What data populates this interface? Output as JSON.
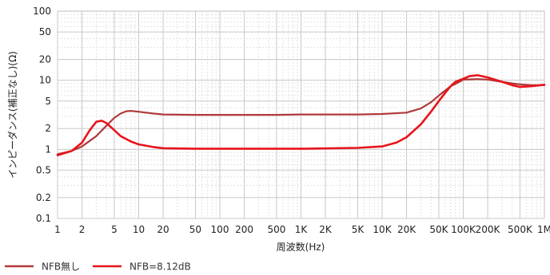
{
  "chart_data": {
    "type": "line",
    "xlabel": "周波数(Hz)",
    "ylabel": "インピーダンス(補正なし)(Ω)",
    "x_scale": "log",
    "y_scale": "log",
    "xlim": [
      1,
      1000000
    ],
    "ylim": [
      0.1,
      100
    ],
    "grid": true,
    "legend_position": "bottom-left",
    "x_ticks": [
      {
        "value": 1,
        "label": "1"
      },
      {
        "value": 2,
        "label": "2"
      },
      {
        "value": 5,
        "label": "5"
      },
      {
        "value": 10,
        "label": "10"
      },
      {
        "value": 20,
        "label": "20"
      },
      {
        "value": 50,
        "label": "50"
      },
      {
        "value": 100,
        "label": "100"
      },
      {
        "value": 200,
        "label": "200"
      },
      {
        "value": 500,
        "label": "500"
      },
      {
        "value": 1000,
        "label": "1K"
      },
      {
        "value": 2000,
        "label": "2K"
      },
      {
        "value": 5000,
        "label": "5K"
      },
      {
        "value": 10000,
        "label": "10K"
      },
      {
        "value": 20000,
        "label": "20K"
      },
      {
        "value": 50000,
        "label": "50K"
      },
      {
        "value": 100000,
        "label": "100K"
      },
      {
        "value": 200000,
        "label": "200K"
      },
      {
        "value": 500000,
        "label": "500K"
      },
      {
        "value": 1000000,
        "label": "1M"
      }
    ],
    "y_ticks": [
      {
        "value": 0.1,
        "label": "0.1"
      },
      {
        "value": 0.2,
        "label": "0.2"
      },
      {
        "value": 0.5,
        "label": "0.5"
      },
      {
        "value": 1,
        "label": "1"
      },
      {
        "value": 2,
        "label": "2"
      },
      {
        "value": 5,
        "label": "5"
      },
      {
        "value": 10,
        "label": "10"
      },
      {
        "value": 20,
        "label": "20"
      },
      {
        "value": 50,
        "label": "50"
      },
      {
        "value": 100,
        "label": "100"
      }
    ],
    "series": [
      {
        "name": "NFB無し",
        "color": "#b03a3a",
        "x": [
          1,
          1.5,
          2,
          3,
          4,
          5,
          6,
          7,
          8,
          10,
          15,
          20,
          50,
          100,
          500,
          1000,
          5000,
          10000,
          20000,
          30000,
          40000,
          50000,
          70000,
          90000,
          100000,
          120000,
          150000,
          200000,
          300000,
          400000,
          500000,
          700000,
          1000000
        ],
        "y": [
          0.85,
          0.95,
          1.1,
          1.55,
          2.2,
          2.85,
          3.3,
          3.55,
          3.6,
          3.5,
          3.3,
          3.2,
          3.15,
          3.15,
          3.15,
          3.2,
          3.2,
          3.25,
          3.4,
          3.9,
          4.8,
          6,
          8.2,
          9.5,
          10.2,
          10.3,
          10.4,
          10.2,
          9.5,
          9.0,
          8.7,
          8.5,
          8.5
        ]
      },
      {
        "name": "NFB=8.12dB",
        "color": "#e8141b",
        "x": [
          1,
          1.5,
          2,
          2.5,
          3,
          3.5,
          4,
          5,
          6,
          8,
          10,
          15,
          20,
          50,
          100,
          500,
          1000,
          5000,
          10000,
          15000,
          20000,
          30000,
          40000,
          50000,
          60000,
          70000,
          80000,
          100000,
          120000,
          150000,
          200000,
          300000,
          400000,
          500000,
          700000,
          1000000
        ],
        "y": [
          0.82,
          0.95,
          1.25,
          1.9,
          2.5,
          2.6,
          2.4,
          1.9,
          1.55,
          1.3,
          1.18,
          1.08,
          1.04,
          1.02,
          1.02,
          1.02,
          1.02,
          1.05,
          1.1,
          1.25,
          1.5,
          2.3,
          3.5,
          5,
          6.6,
          8.2,
          9.5,
          10.5,
          11.5,
          11.8,
          11.0,
          9.5,
          8.5,
          8.0,
          8.2,
          8.6
        ]
      }
    ]
  }
}
